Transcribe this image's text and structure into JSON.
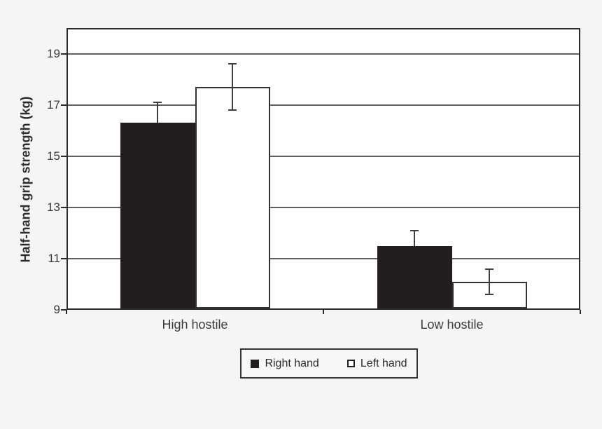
{
  "chart_data": {
    "type": "bar",
    "title": "",
    "xlabel": "",
    "ylabel": "Half-hand grip strength (kg)",
    "categories": [
      "High hostile",
      "Low hostile"
    ],
    "series": [
      {
        "name": "Right hand",
        "fill": "#221e1f",
        "stroke": "#221e1f",
        "values": [
          16.3,
          11.5
        ],
        "errors": [
          0.8,
          0.6
        ]
      },
      {
        "name": "Left hand",
        "fill": "#ffffff",
        "stroke": "#333333",
        "values": [
          17.7,
          10.1
        ],
        "errors": [
          0.9,
          0.5
        ]
      }
    ],
    "ylim": [
      9,
      20
    ],
    "yticks": [
      9,
      11,
      13,
      15,
      17,
      19
    ],
    "grid": "horizontal gridlines at labeled ticks",
    "legend_position": "bottom center",
    "error_bars": true
  },
  "colors": {
    "background": "#f5f5f6",
    "plot_background": "#ffffff",
    "axis": "#2e2b2c",
    "gridline": "#5f5f5f",
    "text": "#3a3a3a",
    "error_bar": "#3d3d3d"
  }
}
